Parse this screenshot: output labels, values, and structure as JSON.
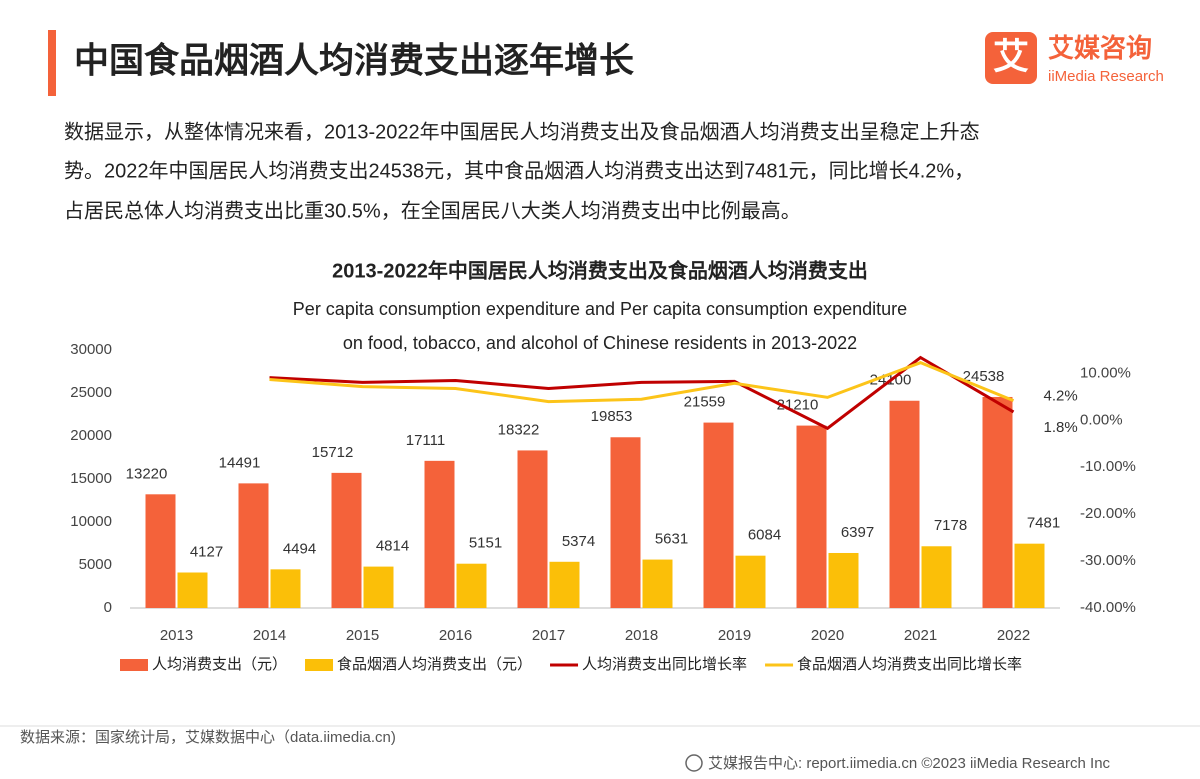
{
  "header": {
    "title": "中国食品烟酒人均消费支出逐年增长"
  },
  "logo": {
    "icon": "艾",
    "name": "艾媒咨询",
    "en": "iiMedia Research"
  },
  "description": [
    "数据显示，从整体情况来看，2013-2022年中国居民人均消费支出及食品烟酒人均消费支出呈稳定上升态",
    "势。2022年中国居民人均消费支出24538元，其中食品烟酒人均消费支出达到7481元，同比增长4.2%，",
    "占居民总体人均消费支出比重30.5%，在全国居民八大类人均消费支出中比例最高。"
  ],
  "chart_data": {
    "type": "combo",
    "title": "2013-2022年中国居民人均消费支出及食品烟酒人均消费支出",
    "subtitle": [
      "Per capita consumption expenditure and Per capita consumption expenditure",
      "on food, tobacco, and alcohol of Chinese residents in 2013-2022"
    ],
    "categories": [
      "2013",
      "2014",
      "2015",
      "2016",
      "2017",
      "2018",
      "2019",
      "2020",
      "2021",
      "2022"
    ],
    "series": [
      {
        "name": "人均消费支出（元）",
        "type": "bar",
        "color": "#f4623a",
        "values": [
          13220,
          14491,
          15712,
          17111,
          18322,
          19853,
          21559,
          21210,
          24100,
          24538
        ]
      },
      {
        "name": "食品烟酒人均消费支出（元）",
        "type": "bar",
        "color": "#fbbf08",
        "values": [
          4127,
          4494,
          4814,
          5151,
          5374,
          5631,
          6084,
          6397,
          7178,
          7481
        ]
      },
      {
        "name": "人均消费支出同比增长率",
        "type": "line",
        "axis": "y2",
        "color": "#c00000",
        "values": [
          null,
          9.1,
          8.1,
          8.5,
          6.8,
          8.1,
          8.3,
          -1.7,
          13.4,
          1.8
        ],
        "value_labels": [
          null,
          null,
          null,
          null,
          null,
          null,
          null,
          null,
          null,
          "1.8%"
        ]
      },
      {
        "name": "食品烟酒人均消费支出同比增长率",
        "type": "line",
        "axis": "y2",
        "color": "#fcc419",
        "values": [
          null,
          8.7,
          7.2,
          6.8,
          4.0,
          4.5,
          7.9,
          4.9,
          12.3,
          4.2
        ],
        "value_labels": [
          null,
          null,
          null,
          null,
          null,
          null,
          null,
          null,
          null,
          "4.2%"
        ]
      }
    ],
    "ylim": [
      0,
      30000
    ],
    "yticks": [
      0,
      5000,
      10000,
      15000,
      20000,
      25000,
      30000
    ],
    "y2lim": [
      -40,
      15
    ],
    "y2ticks": [
      {
        "value": -40,
        "label": "-40.00%"
      },
      {
        "value": -30,
        "label": "-30.00%"
      },
      {
        "value": -20,
        "label": "-20.00%"
      },
      {
        "value": -10,
        "label": "-10.00%"
      },
      {
        "value": 0,
        "label": "0.00%"
      },
      {
        "value": 10,
        "label": "10.00%"
      }
    ],
    "legend": "bottom"
  },
  "footer": {
    "source": "数据来源：国家统计局，艾媒数据中心（data.iimedia.cn)",
    "credit": "艾媒报告中心: report.iimedia.cn  ©2023  iiMedia Research  Inc"
  }
}
